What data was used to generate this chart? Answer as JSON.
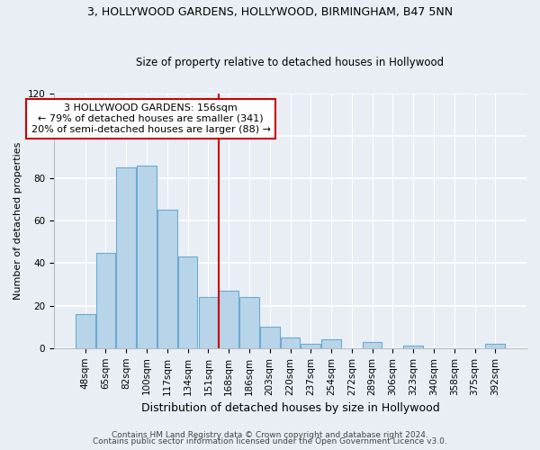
{
  "title": "3, HOLLYWOOD GARDENS, HOLLYWOOD, BIRMINGHAM, B47 5NN",
  "subtitle": "Size of property relative to detached houses in Hollywood",
  "xlabel": "Distribution of detached houses by size in Hollywood",
  "ylabel": "Number of detached properties",
  "bar_color": "#b8d4e8",
  "bar_edge_color": "#6aaad4",
  "categories": [
    "48sqm",
    "65sqm",
    "82sqm",
    "100sqm",
    "117sqm",
    "134sqm",
    "151sqm",
    "168sqm",
    "186sqm",
    "203sqm",
    "220sqm",
    "237sqm",
    "254sqm",
    "272sqm",
    "289sqm",
    "306sqm",
    "323sqm",
    "340sqm",
    "358sqm",
    "375sqm",
    "392sqm"
  ],
  "values": [
    16,
    45,
    85,
    86,
    65,
    43,
    24,
    27,
    24,
    10,
    5,
    2,
    4,
    0,
    3,
    0,
    1,
    0,
    0,
    0,
    2
  ],
  "vline_index": 6.5,
  "vline_color": "#cc0000",
  "annotation_line1": "3 HOLLYWOOD GARDENS: 156sqm",
  "annotation_line2": "← 79% of detached houses are smaller (341)",
  "annotation_line3": "20% of semi-detached houses are larger (88) →",
  "annotation_box_facecolor": "#ffffff",
  "annotation_box_edgecolor": "#cc0000",
  "ylim": [
    0,
    120
  ],
  "yticks": [
    0,
    20,
    40,
    60,
    80,
    100,
    120
  ],
  "footer_line1": "Contains HM Land Registry data © Crown copyright and database right 2024.",
  "footer_line2": "Contains public sector information licensed under the Open Government Licence v3.0.",
  "bg_color": "#e8eef4",
  "grid_color": "#ffffff",
  "title_fontsize": 9,
  "subtitle_fontsize": 8.5,
  "xlabel_fontsize": 9,
  "ylabel_fontsize": 8,
  "tick_fontsize": 7.5,
  "footer_fontsize": 6.5
}
